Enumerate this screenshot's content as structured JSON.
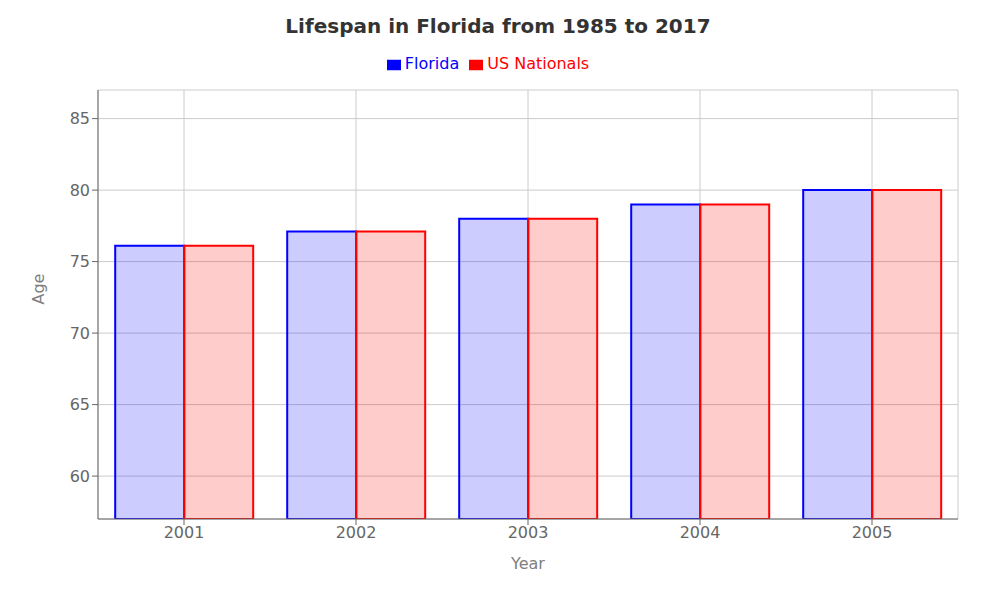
{
  "chart_data": {
    "type": "bar",
    "title": "Lifespan in Florida from 1985 to 2017",
    "x_label": "Year",
    "y_label": "Age",
    "categories": [
      "2001",
      "2002",
      "2003",
      "2004",
      "2005"
    ],
    "series": [
      {
        "name": "Florida",
        "color": "#0000ff",
        "values": [
          76.1,
          77.1,
          78.0,
          79.0,
          80.0
        ]
      },
      {
        "name": "US Nationals",
        "color": "#ff0000",
        "values": [
          76.1,
          77.1,
          78.0,
          79.0,
          80.0
        ]
      }
    ],
    "ylim": [
      57,
      87
    ],
    "yticks": [
      60,
      65,
      70,
      75,
      80,
      85
    ],
    "grid": true,
    "legend": "top"
  }
}
